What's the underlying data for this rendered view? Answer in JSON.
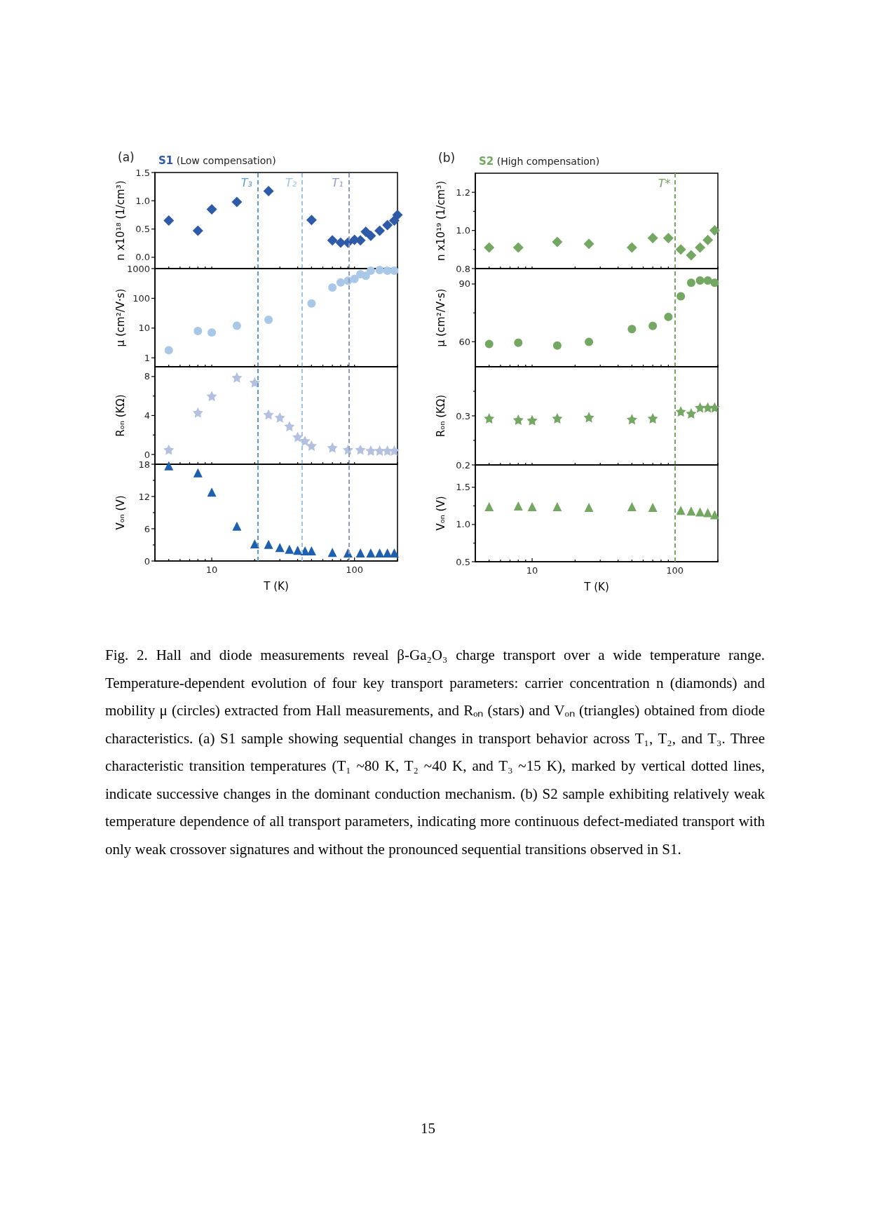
{
  "chart_data": [
    {
      "type": "scatter",
      "title": "(a)",
      "subtitle": "S1 (Low compensation)",
      "ylabel": "n x10¹⁸ (1/cm³)",
      "log": "x",
      "marker": "diamond",
      "tick_labels": "y",
      "xlim": [
        4,
        200
      ],
      "xticks": [
        {
          "value": 5,
          "label": null
        },
        {
          "value": 6,
          "label": null
        },
        {
          "value": 7,
          "label": null
        },
        {
          "value": 8,
          "label": null
        },
        {
          "value": 9,
          "label": null
        },
        {
          "value": 10,
          "label": null
        },
        {
          "value": 20,
          "label": null
        },
        {
          "value": 30,
          "label": null
        },
        {
          "value": 40,
          "label": null
        },
        {
          "value": 50,
          "label": null
        },
        {
          "value": 60,
          "label": null
        },
        {
          "value": 70,
          "label": null
        },
        {
          "value": 80,
          "label": null
        },
        {
          "value": 90,
          "label": null
        },
        {
          "value": 100,
          "label": null
        },
        {
          "value": 200,
          "label": null
        }
      ],
      "ylim": [
        -0.2,
        1.5
      ],
      "yticks": [
        {
          "value": 0,
          "label": "0.0"
        },
        0.5,
        {
          "value": 1,
          "label": "1.0"
        },
        1.5
      ],
      "series": [
        {
          "color": "#2f5aa8",
          "x": [
            5,
            8,
            10,
            15,
            25,
            50,
            70,
            80,
            90,
            100,
            110,
            120,
            130,
            150,
            170,
            190,
            200
          ],
          "values": [
            0.65,
            0.47,
            0.85,
            0.98,
            1.17,
            0.66,
            0.3,
            0.26,
            0.26,
            0.31,
            0.3,
            0.45,
            0.38,
            0.47,
            0.57,
            0.65,
            0.75
          ]
        }
      ],
      "ref_lines": [
        {
          "axis": "x",
          "value": 21,
          "label": "T₃",
          "color": "#5b9bd5",
          "line_style": "dashed"
        },
        {
          "axis": "x",
          "value": 43,
          "label": "T₂",
          "color": "#9dc3e6",
          "line_style": "dashed"
        },
        {
          "axis": "x",
          "value": 91,
          "label": "T₁",
          "color": "#8e9cc0",
          "line_style": "dashed"
        }
      ]
    },
    {
      "type": "scatter",
      "ylabel": "μ (cm²/V·s)",
      "log": "xy",
      "marker": "circle",
      "tick_labels": "y",
      "xlim": [
        4,
        200
      ],
      "xticks": [
        {
          "value": 5,
          "label": null
        },
        {
          "value": 6,
          "label": null
        },
        {
          "value": 7,
          "label": null
        },
        {
          "value": 8,
          "label": null
        },
        {
          "value": 9,
          "label": null
        },
        {
          "value": 10,
          "label": null
        },
        {
          "value": 20,
          "label": null
        },
        {
          "value": 30,
          "label": null
        },
        {
          "value": 40,
          "label": null
        },
        {
          "value": 50,
          "label": null
        },
        {
          "value": 60,
          "label": null
        },
        {
          "value": 70,
          "label": null
        },
        {
          "value": 80,
          "label": null
        },
        {
          "value": 90,
          "label": null
        },
        {
          "value": 100,
          "label": null
        },
        {
          "value": 200,
          "label": null
        }
      ],
      "ylim": [
        0.5,
        1000
      ],
      "yticks": [
        1,
        10,
        100,
        1000
      ],
      "series": [
        {
          "color": "#a9c8e8",
          "x": [
            5,
            8,
            10,
            15,
            25,
            50,
            70,
            80,
            90,
            100,
            110,
            120,
            130,
            150,
            170,
            190
          ],
          "values": [
            1.8,
            8,
            7.1,
            12,
            19,
            67,
            230,
            340,
            390,
            450,
            650,
            570,
            850,
            900,
            850,
            850
          ]
        }
      ],
      "ref_lines": [
        {
          "axis": "x",
          "value": 21,
          "color": "#5b9bd5",
          "line_style": "dashed"
        },
        {
          "axis": "x",
          "value": 43,
          "color": "#9dc3e6",
          "line_style": "dashed"
        },
        {
          "axis": "x",
          "value": 91,
          "color": "#8e9cc0",
          "line_style": "dashed"
        }
      ]
    },
    {
      "type": "scatter",
      "ylabel": "Rₒₙ (KΩ)",
      "log": "x",
      "marker": "star",
      "tick_labels": "y",
      "xlim": [
        4,
        200
      ],
      "xticks": [
        {
          "value": 5,
          "label": null
        },
        {
          "value": 6,
          "label": null
        },
        {
          "value": 7,
          "label": null
        },
        {
          "value": 8,
          "label": null
        },
        {
          "value": 9,
          "label": null
        },
        {
          "value": 10,
          "label": null
        },
        {
          "value": 20,
          "label": null
        },
        {
          "value": 30,
          "label": null
        },
        {
          "value": 40,
          "label": null
        },
        {
          "value": 50,
          "label": null
        },
        {
          "value": 60,
          "label": null
        },
        {
          "value": 70,
          "label": null
        },
        {
          "value": 80,
          "label": null
        },
        {
          "value": 90,
          "label": null
        },
        {
          "value": 100,
          "label": null
        },
        {
          "value": 200,
          "label": null
        }
      ],
      "ylim": [
        -1,
        9
      ],
      "yticks": [
        0,
        {
          "value": 2,
          "label": null
        },
        4,
        {
          "value": 6,
          "label": null
        },
        8
      ],
      "series": [
        {
          "color": "#b4c0e0",
          "x": [
            5,
            8,
            10,
            15,
            20,
            25,
            30,
            35,
            40,
            45,
            50,
            70,
            90,
            110,
            130,
            150,
            170,
            190
          ],
          "values": [
            0.5,
            4.3,
            6,
            7.9,
            7.4,
            4.1,
            3.8,
            2.9,
            1.8,
            1.4,
            0.9,
            0.7,
            0.5,
            0.5,
            0.4,
            0.4,
            0.4,
            0.4
          ]
        }
      ],
      "ref_lines": [
        {
          "axis": "x",
          "value": 21,
          "color": "#5b9bd5",
          "line_style": "dashed"
        },
        {
          "axis": "x",
          "value": 43,
          "color": "#9dc3e6",
          "line_style": "dashed"
        },
        {
          "axis": "x",
          "value": 91,
          "color": "#8e9cc0",
          "line_style": "dashed"
        }
      ]
    },
    {
      "type": "scatter",
      "xlabel": "T (K)",
      "ylabel": "Vₒₙ (V)",
      "log": "x",
      "marker": "triangle",
      "xlim": [
        4,
        200
      ],
      "xticks": [
        {
          "value": 5,
          "label": null
        },
        {
          "value": 6,
          "label": null
        },
        {
          "value": 7,
          "label": null
        },
        {
          "value": 8,
          "label": null
        },
        {
          "value": 9,
          "label": null
        },
        {
          "value": 10,
          "label": "10"
        },
        {
          "value": 20,
          "label": null
        },
        {
          "value": 30,
          "label": null
        },
        {
          "value": 40,
          "label": null
        },
        {
          "value": 50,
          "label": null
        },
        {
          "value": 60,
          "label": null
        },
        {
          "value": 70,
          "label": null
        },
        {
          "value": 80,
          "label": null
        },
        {
          "value": 90,
          "label": null
        },
        {
          "value": 100,
          "label": "100"
        },
        {
          "value": 200,
          "label": null
        }
      ],
      "ylim": [
        0,
        18
      ],
      "yticks": [
        0,
        {
          "value": 3,
          "label": null
        },
        6,
        {
          "value": 9,
          "label": null
        },
        12,
        {
          "value": 15,
          "label": null
        },
        18
      ],
      "series": [
        {
          "color": "#1f5fb0",
          "x": [
            5,
            8,
            10,
            15,
            20,
            25,
            30,
            35,
            40,
            45,
            50,
            70,
            90,
            110,
            130,
            150,
            170,
            190
          ],
          "values": [
            17.7,
            16.4,
            12.8,
            6.5,
            3.2,
            3.1,
            2.5,
            2.2,
            2.0,
            1.9,
            1.9,
            1.6,
            1.5,
            1.5,
            1.5,
            1.5,
            1.5,
            1.5
          ]
        }
      ],
      "ref_lines": [
        {
          "axis": "x",
          "value": 21,
          "color": "#5b9bd5",
          "line_style": "dashed"
        },
        {
          "axis": "x",
          "value": 43,
          "color": "#9dc3e6",
          "line_style": "dashed"
        },
        {
          "axis": "x",
          "value": 91,
          "color": "#8e9cc0",
          "line_style": "dashed"
        }
      ]
    },
    {
      "type": "scatter",
      "title": "(b)",
      "subtitle": "S2 (High compensation)",
      "ylabel": "n x10¹⁹ (1/cm³)",
      "log": "x",
      "marker": "diamond",
      "tick_labels": "y",
      "xlim": [
        4,
        200
      ],
      "xticks": [
        {
          "value": 5,
          "label": null
        },
        {
          "value": 6,
          "label": null
        },
        {
          "value": 7,
          "label": null
        },
        {
          "value": 8,
          "label": null
        },
        {
          "value": 9,
          "label": null
        },
        {
          "value": 10,
          "label": null
        },
        {
          "value": 20,
          "label": null
        },
        {
          "value": 30,
          "label": null
        },
        {
          "value": 40,
          "label": null
        },
        {
          "value": 50,
          "label": null
        },
        {
          "value": 60,
          "label": null
        },
        {
          "value": 70,
          "label": null
        },
        {
          "value": 80,
          "label": null
        },
        {
          "value": 90,
          "label": null
        },
        {
          "value": 100,
          "label": null
        },
        {
          "value": 200,
          "label": null
        }
      ],
      "ylim": [
        0.8,
        1.3
      ],
      "yticks": [
        0.8,
        {
          "value": 0.9,
          "label": null
        },
        {
          "value": 1,
          "label": "1.0"
        },
        {
          "value": 1.1,
          "label": null
        },
        1.2
      ],
      "series": [
        {
          "color": "#74a862",
          "x": [
            5,
            8,
            15,
            25,
            50,
            70,
            90,
            110,
            130,
            150,
            170,
            190
          ],
          "values": [
            0.91,
            0.91,
            0.94,
            0.93,
            0.91,
            0.96,
            0.96,
            0.9,
            0.87,
            0.91,
            0.95,
            1.0
          ]
        }
      ],
      "ref_lines": [
        {
          "axis": "x",
          "value": 100,
          "label": "T*",
          "color": "#74a862",
          "line_style": "dashed"
        }
      ]
    },
    {
      "type": "scatter",
      "ylabel": "μ (cm²/V·s)",
      "log": "x",
      "marker": "circle",
      "tick_labels": "y",
      "xlim": [
        4,
        200
      ],
      "xticks": [
        {
          "value": 5,
          "label": null
        },
        {
          "value": 6,
          "label": null
        },
        {
          "value": 7,
          "label": null
        },
        {
          "value": 8,
          "label": null
        },
        {
          "value": 9,
          "label": null
        },
        {
          "value": 10,
          "label": null
        },
        {
          "value": 20,
          "label": null
        },
        {
          "value": 30,
          "label": null
        },
        {
          "value": 40,
          "label": null
        },
        {
          "value": 50,
          "label": null
        },
        {
          "value": 60,
          "label": null
        },
        {
          "value": 70,
          "label": null
        },
        {
          "value": 80,
          "label": null
        },
        {
          "value": 90,
          "label": null
        },
        {
          "value": 100,
          "label": null
        },
        {
          "value": 200,
          "label": null
        }
      ],
      "ylim": [
        47,
        98
      ],
      "yticks": [
        60,
        {
          "value": 75,
          "label": null
        },
        90
      ],
      "series": [
        {
          "color": "#74a862",
          "x": [
            5,
            8,
            15,
            25,
            50,
            70,
            90,
            110,
            130,
            150,
            170,
            190
          ],
          "values": [
            58.8,
            59.5,
            58,
            59.9,
            66.6,
            68.2,
            72.9,
            83.6,
            90.6,
            91.8,
            91.8,
            90.6
          ]
        }
      ],
      "ref_lines": [
        {
          "axis": "x",
          "value": 100,
          "color": "#74a862",
          "line_style": "dashed"
        }
      ]
    },
    {
      "type": "scatter",
      "ylabel": "Rₒₙ (KΩ)",
      "log": "x",
      "marker": "star",
      "tick_labels": "y",
      "xlim": [
        4,
        200
      ],
      "xticks": [
        {
          "value": 5,
          "label": null
        },
        {
          "value": 6,
          "label": null
        },
        {
          "value": 7,
          "label": null
        },
        {
          "value": 8,
          "label": null
        },
        {
          "value": 9,
          "label": null
        },
        {
          "value": 10,
          "label": null
        },
        {
          "value": 20,
          "label": null
        },
        {
          "value": 30,
          "label": null
        },
        {
          "value": 40,
          "label": null
        },
        {
          "value": 50,
          "label": null
        },
        {
          "value": 60,
          "label": null
        },
        {
          "value": 70,
          "label": null
        },
        {
          "value": 80,
          "label": null
        },
        {
          "value": 90,
          "label": null
        },
        {
          "value": 100,
          "label": null
        },
        {
          "value": 200,
          "label": null
        }
      ],
      "ylim": [
        0.2,
        0.4
      ],
      "yticks": [
        0.2,
        {
          "value": 0.25,
          "label": null
        },
        0.3,
        {
          "value": 0.35,
          "label": null
        }
      ],
      "series": [
        {
          "color": "#74a862",
          "x": [
            5,
            8,
            10,
            15,
            25,
            50,
            70,
            110,
            130,
            150,
            170,
            190
          ],
          "values": [
            0.295,
            0.292,
            0.291,
            0.295,
            0.297,
            0.293,
            0.295,
            0.309,
            0.305,
            0.317,
            0.317,
            0.317
          ]
        }
      ],
      "ref_lines": [
        {
          "axis": "x",
          "value": 100,
          "color": "#74a862",
          "line_style": "dashed"
        }
      ]
    },
    {
      "type": "scatter",
      "xlabel": "T (K)",
      "ylabel": "Vₒₙ (V)",
      "log": "x",
      "marker": "triangle",
      "xlim": [
        4,
        200
      ],
      "xticks": [
        {
          "value": 5,
          "label": null
        },
        {
          "value": 6,
          "label": null
        },
        {
          "value": 7,
          "label": null
        },
        {
          "value": 8,
          "label": null
        },
        {
          "value": 9,
          "label": null
        },
        {
          "value": 10,
          "label": "10"
        },
        {
          "value": 20,
          "label": null
        },
        {
          "value": 30,
          "label": null
        },
        {
          "value": 40,
          "label": null
        },
        {
          "value": 50,
          "label": null
        },
        {
          "value": 60,
          "label": null
        },
        {
          "value": 70,
          "label": null
        },
        {
          "value": 80,
          "label": null
        },
        {
          "value": 90,
          "label": null
        },
        {
          "value": 100,
          "label": "100"
        },
        {
          "value": 200,
          "label": null
        }
      ],
      "ylim": [
        0.5,
        1.8
      ],
      "yticks": [
        0.5,
        {
          "value": 0.75,
          "label": null
        },
        {
          "value": 1,
          "label": "1.0"
        },
        {
          "value": 1.25,
          "label": null
        },
        1.5
      ],
      "series": [
        {
          "color": "#74a862",
          "x": [
            5,
            8,
            10,
            15,
            25,
            50,
            70,
            110,
            130,
            150,
            170,
            190
          ],
          "values": [
            1.24,
            1.25,
            1.24,
            1.24,
            1.23,
            1.24,
            1.23,
            1.19,
            1.18,
            1.17,
            1.16,
            1.13
          ]
        }
      ],
      "ref_lines": [
        {
          "axis": "x",
          "value": 100,
          "color": "#74a862",
          "line_style": "dashed"
        }
      ],
      "annotations": [
        "Fig. 2. Hall and diode measurements reveal β-Ga₂O₃ charge transport over a wide temperature range. Temperature-dependent evolution of four key transport parameters: carrier concentration n (diamonds) and mobility μ (circles) extracted from Hall measurements, and Rₒₙ (stars) and Vₒₙ (triangles) obtained from diode characteristics. (a) S1 sample showing sequential changes in transport behavior across T₁, T₂, and T₃. Three characteristic transition temperatures (T₁ ~80 K, T₂ ~40 K, and T₃ ~15 K), marked by vertical dotted lines, indicate successive changes in the dominant conduction mechanism. (b) S2 sample exhibiting relatively weak temperature dependence of all transport parameters, indicating more continuous defect-mediated transport with only weak crossover signatures and without the pronounced sequential transitions observed in S1.",
        "15"
      ]
    }
  ]
}
